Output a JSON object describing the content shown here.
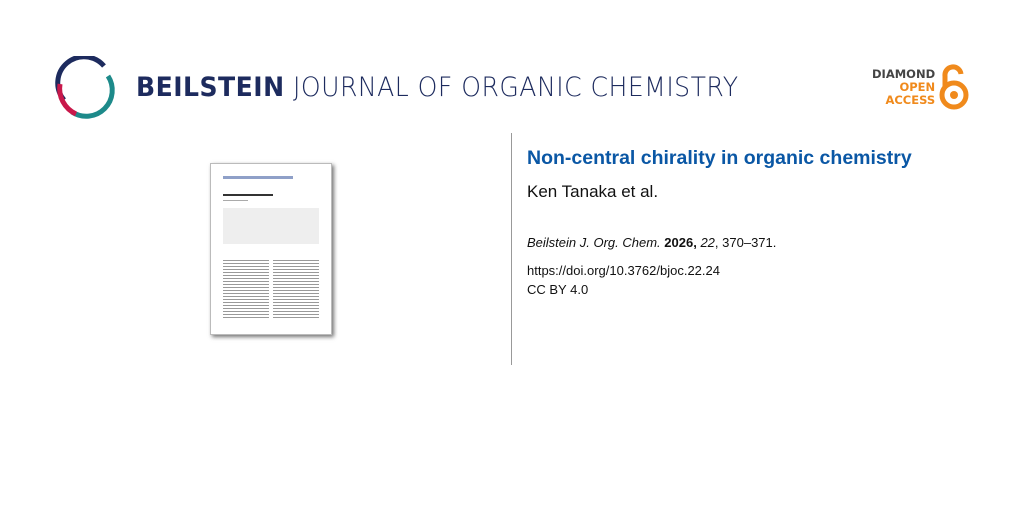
{
  "header": {
    "journal_brand": "BEILSTEIN",
    "journal_name": "JOURNAL OF ORGANIC CHEMISTRY",
    "badge": {
      "line1": "DIAMOND",
      "line2": "OPEN",
      "line3": "ACCESS",
      "icon": "open-access-lock-icon",
      "color": "#f08a1c"
    }
  },
  "article": {
    "title": "Non-central chirality in organic chemistry",
    "authors": "Ken Tanaka et al.",
    "citation": {
      "journal": "Beilstein J. Org. Chem.",
      "year": "2026,",
      "volume": "22",
      "pages": ", 370–371."
    },
    "doi": "https://doi.org/10.3762/bjoc.22.24",
    "license": "CC BY 4.0"
  },
  "colors": {
    "title": "#0a57a5",
    "brand": "#1d2b5e"
  }
}
